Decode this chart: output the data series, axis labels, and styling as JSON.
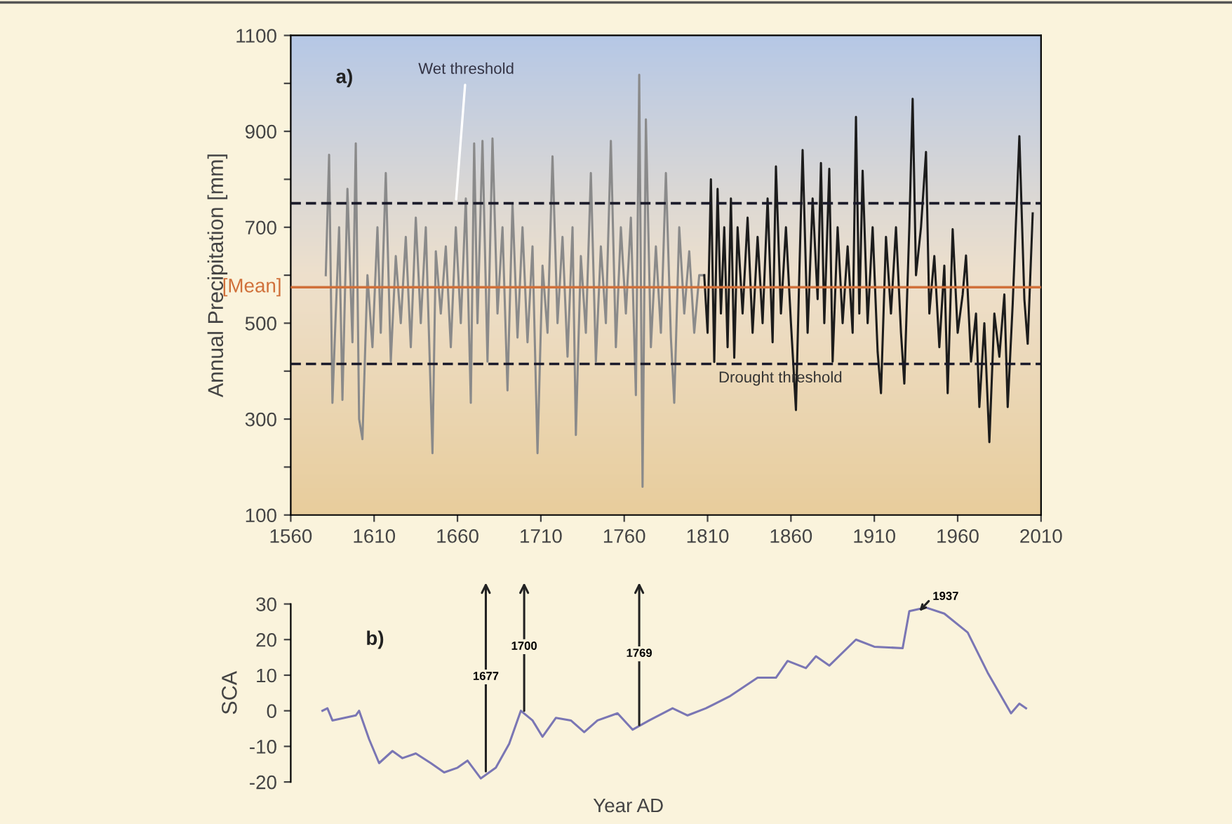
{
  "chart_data": [
    {
      "type": "line",
      "ylabel": "Annual Precipitation [mm]",
      "annotations": [
        "a)"
      ],
      "xlim": [
        1560,
        2010
      ],
      "xticks": [
        1560,
        1610,
        1660,
        1710,
        1760,
        1810,
        1860,
        1910,
        1960,
        2010
      ],
      "ylim": [
        100,
        1100
      ],
      "yticks": [
        100,
        {
          "value": 200,
          "label": null
        },
        300,
        {
          "value": 400,
          "label": null
        },
        500,
        {
          "value": 600,
          "label": null
        },
        700,
        {
          "value": 800,
          "label": null
        },
        900,
        {
          "value": 1000,
          "label": null
        },
        1100
      ],
      "grid": false,
      "legend": false,
      "marker": "none",
      "line_style": "solid",
      "ref_lines": [
        {
          "axis": "y",
          "value": 750,
          "label": "Wet threshold",
          "color": "#1a1a2a",
          "line_style": "dashed"
        },
        {
          "axis": "y",
          "value": 575,
          "label": "[Mean]",
          "color": "#d0703a",
          "line_style": "solid"
        },
        {
          "axis": "y",
          "value": 415,
          "label": "Drought threshold",
          "color": "#1a1a2a",
          "line_style": "dashed"
        }
      ],
      "series": [
        {
          "color": "#8a8a8a",
          "x": [
            1581,
            1583,
            1585,
            1587,
            1589,
            1591,
            1594,
            1597,
            1599,
            1601,
            1603,
            1606,
            1609,
            1612,
            1614,
            1617,
            1620,
            1623,
            1626,
            1629,
            1632,
            1635,
            1638,
            1641,
            1645,
            1647,
            1650,
            1653,
            1656,
            1659,
            1662,
            1665,
            1668,
            1670,
            1672,
            1675,
            1678,
            1681,
            1684,
            1687,
            1690,
            1693,
            1696,
            1699,
            1702,
            1705,
            1708,
            1711,
            1714,
            1717,
            1720,
            1723,
            1726,
            1729,
            1731,
            1734,
            1737,
            1740,
            1743,
            1746,
            1749,
            1752,
            1755,
            1758,
            1761,
            1764,
            1767,
            1769,
            1771,
            1773,
            1776,
            1779,
            1782,
            1785,
            1788,
            1790,
            1793,
            1796,
            1799,
            1802,
            1805,
            1808
          ],
          "values": [
            600,
            851,
            334,
            520,
            700,
            340,
            780,
            460,
            875,
            300,
            258,
            600,
            450,
            700,
            480,
            813,
            420,
            640,
            500,
            680,
            450,
            720,
            500,
            700,
            229,
            650,
            520,
            660,
            450,
            700,
            500,
            760,
            334,
            875,
            500,
            880,
            420,
            885,
            520,
            700,
            360,
            750,
            470,
            700,
            460,
            660,
            229,
            620,
            480,
            848,
            500,
            680,
            430,
            700,
            267,
            640,
            480,
            813,
            420,
            660,
            500,
            880,
            450,
            700,
            520,
            720,
            350,
            1018,
            159,
            925,
            450,
            660,
            480,
            813,
            470,
            334,
            700,
            520,
            650,
            480,
            600,
            600
          ]
        },
        {
          "color": "#1c1c1c",
          "x": [
            1808,
            1810,
            1812,
            1814,
            1816,
            1818,
            1820,
            1822,
            1824,
            1826,
            1828,
            1831,
            1834,
            1837,
            1840,
            1843,
            1846,
            1849,
            1851,
            1854,
            1857,
            1860,
            1863,
            1865,
            1867,
            1870,
            1873,
            1876,
            1878,
            1880,
            1883,
            1885,
            1888,
            1891,
            1894,
            1897,
            1899,
            1901,
            1903,
            1906,
            1909,
            1912,
            1914,
            1917,
            1920,
            1923,
            1926,
            1928,
            1931,
            1933,
            1935,
            1938,
            1941,
            1943,
            1946,
            1949,
            1952,
            1954,
            1957,
            1960,
            1963,
            1965,
            1968,
            1971,
            1973,
            1976,
            1979,
            1982,
            1985,
            1988,
            1990,
            1993,
            1997,
            2000,
            2002,
            2005
          ],
          "values": [
            600,
            480,
            800,
            419,
            780,
            520,
            700,
            450,
            760,
            428,
            700,
            520,
            720,
            480,
            680,
            500,
            760,
            460,
            827,
            520,
            700,
            500,
            319,
            600,
            861,
            480,
            760,
            550,
            834,
            500,
            822,
            420,
            700,
            500,
            660,
            480,
            930,
            520,
            818,
            500,
            700,
            440,
            354,
            680,
            520,
            700,
            480,
            374,
            700,
            968,
            600,
            700,
            857,
            520,
            640,
            450,
            620,
            354,
            696,
            480,
            560,
            641,
            420,
            520,
            325,
            500,
            252,
            520,
            430,
            560,
            325,
            540,
            890,
            550,
            457,
            729
          ]
        }
      ]
    },
    {
      "type": "line",
      "xlabel": "Year AD",
      "ylabel": "SCA",
      "tick_labels": "y",
      "xlim": [
        1560,
        2010
      ],
      "ylim": [
        -20,
        30
      ],
      "yticks": [
        -20,
        -10,
        0,
        10,
        20,
        30
      ],
      "grid": false,
      "legend": false,
      "marker": "none",
      "line_style": "solid",
      "annotations": [
        "b)",
        {
          "text": "1677",
          "x": 1677,
          "y": -17
        },
        {
          "text": "1700",
          "x": 1700,
          "y": 0
        },
        {
          "text": "1769",
          "x": 1769,
          "y": -4
        },
        {
          "text": "1937",
          "x": 1937,
          "y": 28
        }
      ],
      "series": [
        {
          "color": "#7a76b4",
          "x": [
            1579,
            1582,
            1585,
            1599,
            1601,
            1607,
            1613,
            1621,
            1627,
            1635,
            1644,
            1652,
            1660,
            1666,
            1674,
            1683,
            1691,
            1698,
            1705,
            1711,
            1719,
            1728,
            1736,
            1744,
            1756,
            1765,
            1775,
            1789,
            1798,
            1809,
            1823,
            1840,
            1851,
            1858,
            1869,
            1875,
            1883,
            1899,
            1910,
            1927,
            1931,
            1941,
            1952,
            1966,
            1978,
            1992,
            1997,
            2001
          ],
          "values": [
            0,
            0.7,
            -2.7,
            -1.3,
            0,
            -8,
            -14.7,
            -11.3,
            -13.3,
            -12,
            -14.7,
            -17.3,
            -16,
            -14,
            -19,
            -16,
            -9.3,
            0,
            -2.7,
            -7.3,
            -2,
            -2.7,
            -6,
            -2.7,
            -0.7,
            -5.3,
            -2.7,
            0.7,
            -1.3,
            0.7,
            4,
            9.3,
            9.3,
            14,
            12,
            15.3,
            12.7,
            20,
            18,
            17.6,
            28,
            29,
            27.3,
            22,
            10.7,
            -0.7,
            2,
            0.7
          ]
        }
      ]
    }
  ]
}
